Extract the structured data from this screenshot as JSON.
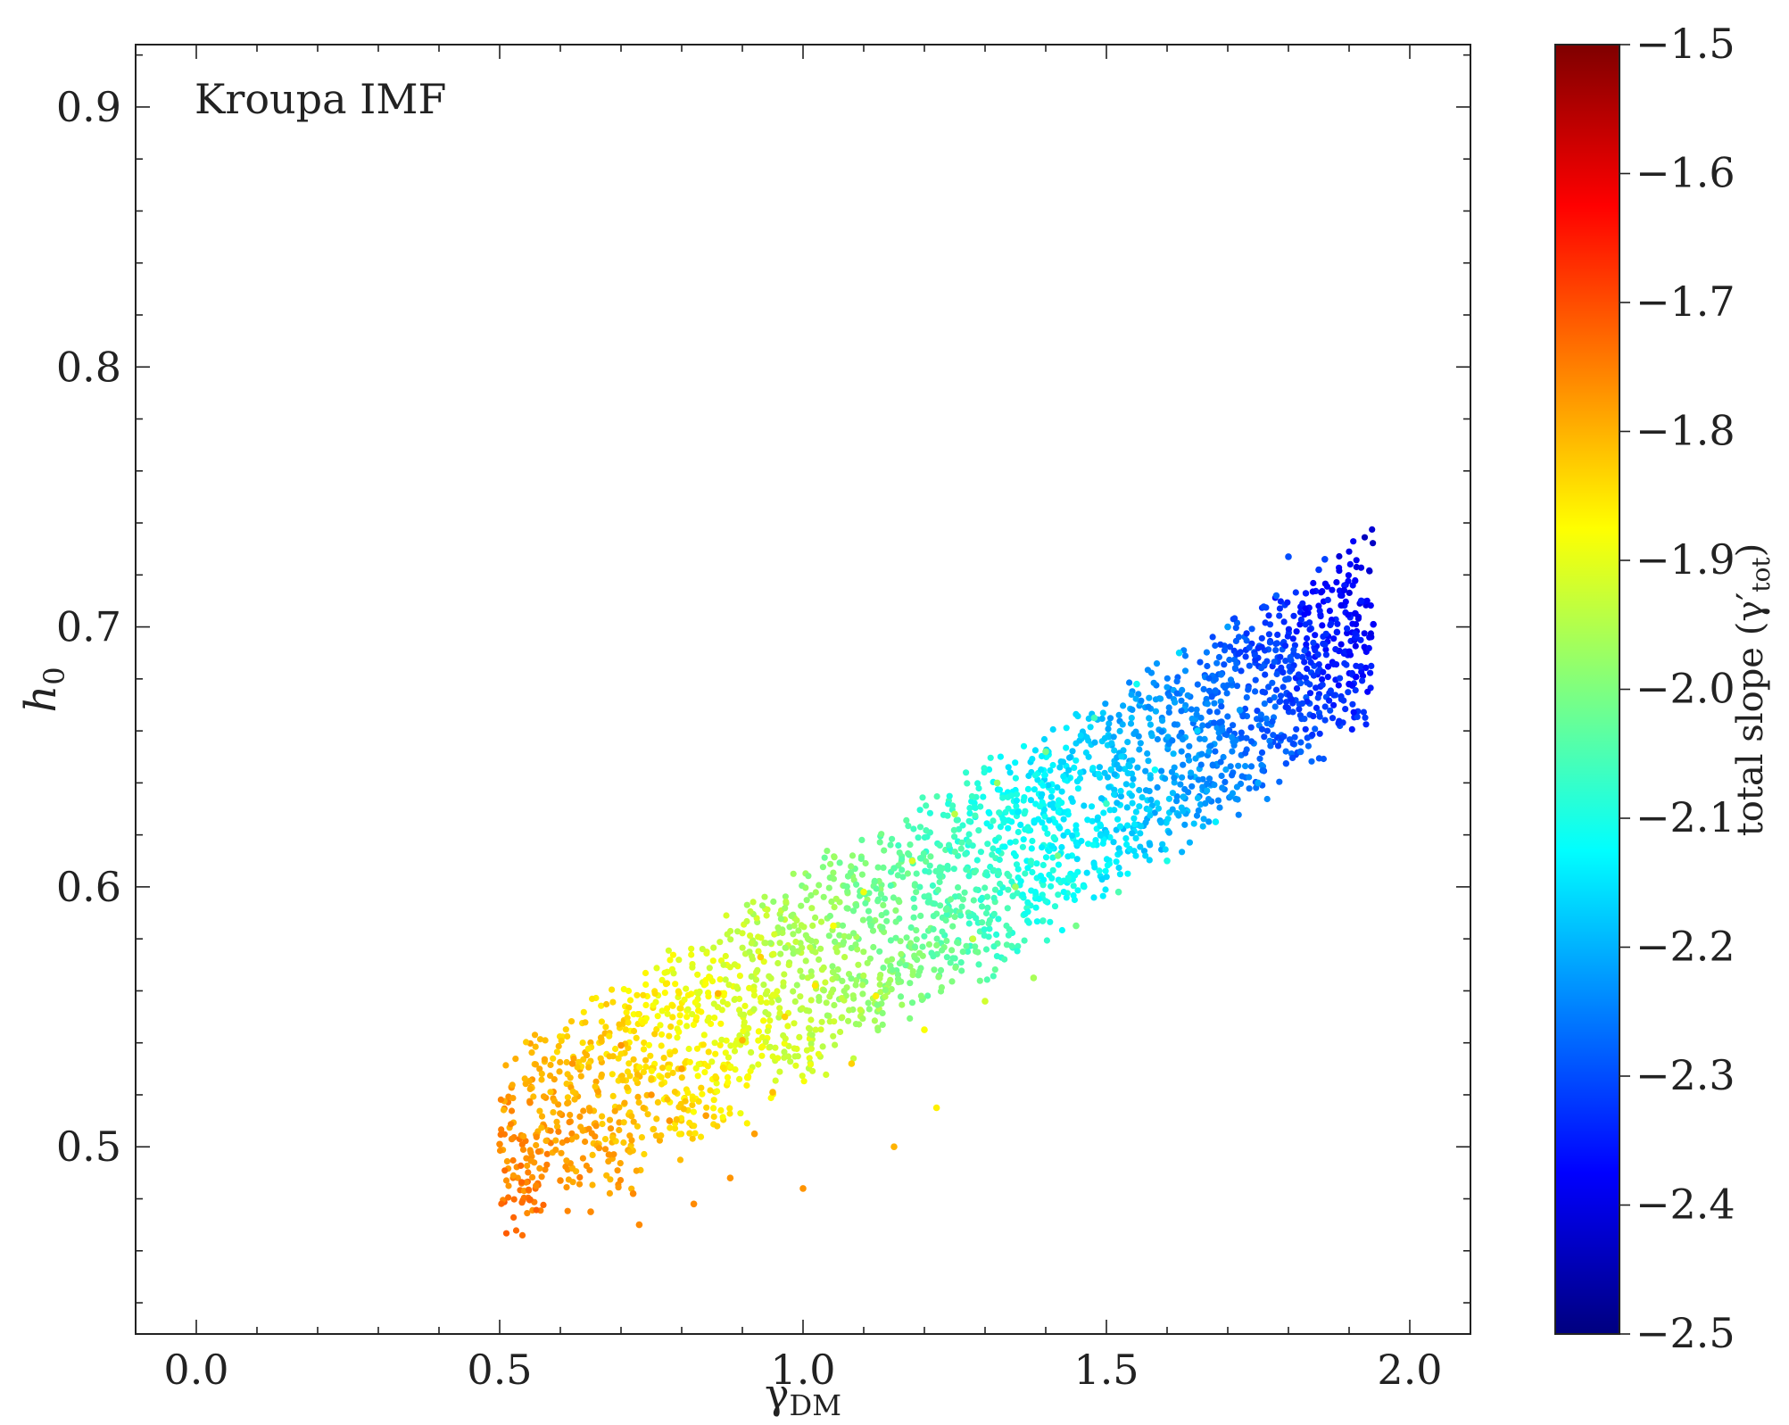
{
  "chart_data": {
    "type": "scatter",
    "annotation": "Kroupa IMF",
    "xlabel": {
      "base": "γ",
      "sub": "DM"
    },
    "ylabel": {
      "base": "h",
      "sub": "0"
    },
    "xlim": [
      -0.1,
      2.1
    ],
    "ylim": [
      0.428,
      0.924
    ],
    "xticks": [
      0.0,
      0.5,
      1.0,
      1.5,
      2.0
    ],
    "xtick_labels": [
      "0.0",
      "0.5",
      "1.0",
      "1.5",
      "2.0"
    ],
    "yticks": [
      0.5,
      0.6,
      0.7,
      0.8,
      0.9
    ],
    "ytick_labels": [
      "0.5",
      "0.6",
      "0.7",
      "0.8",
      "0.9"
    ],
    "colorbar": {
      "label": "total slope (γ′tot)",
      "label_main": "total slope (γ",
      "label_prime": "′",
      "label_sub": "tot",
      "label_close": ")",
      "range": [
        -2.5,
        -1.5
      ],
      "ticks": [
        -1.5,
        -1.6,
        -1.7,
        -1.8,
        -1.9,
        -2.0,
        -2.1,
        -2.2,
        -2.3,
        -2.4,
        -2.5
      ],
      "tick_labels": [
        "−1.5",
        "−1.6",
        "−1.7",
        "−1.8",
        "−1.9",
        "−2.0",
        "−2.1",
        "−2.2",
        "−2.3",
        "−2.4",
        "−2.5"
      ],
      "colormap": "jet",
      "colors": [
        "#00007f",
        "#0000ff",
        "#007fff",
        "#00ffff",
        "#7fff7f",
        "#ffff00",
        "#ff7f00",
        "#ff0000",
        "#7f0000"
      ]
    },
    "points": [
      {
        "x": 0.5,
        "y": 0.501,
        "c": -1.76
      },
      {
        "x": 0.52,
        "y": 0.503,
        "c": -1.76
      },
      {
        "x": 0.55,
        "y": 0.517,
        "c": -1.76
      },
      {
        "x": 0.56,
        "y": 0.485,
        "c": -1.76
      },
      {
        "x": 0.6,
        "y": 0.487,
        "c": -1.76
      },
      {
        "x": 0.62,
        "y": 0.532,
        "c": -1.77
      },
      {
        "x": 0.65,
        "y": 0.475,
        "c": -1.76
      },
      {
        "x": 0.68,
        "y": 0.497,
        "c": -1.77
      },
      {
        "x": 0.7,
        "y": 0.539,
        "c": -1.77
      },
      {
        "x": 0.72,
        "y": 0.482,
        "c": -1.76
      },
      {
        "x": 0.73,
        "y": 0.47,
        "c": -1.76
      },
      {
        "x": 0.75,
        "y": 0.52,
        "c": -1.77
      },
      {
        "x": 0.78,
        "y": 0.51,
        "c": -1.77
      },
      {
        "x": 0.8,
        "y": 0.53,
        "c": -1.78
      },
      {
        "x": 0.82,
        "y": 0.478,
        "c": -1.76
      },
      {
        "x": 0.84,
        "y": 0.512,
        "c": -1.78
      },
      {
        "x": 0.86,
        "y": 0.559,
        "c": -1.8
      },
      {
        "x": 0.88,
        "y": 0.488,
        "c": -1.77
      },
      {
        "x": 0.9,
        "y": 0.541,
        "c": -1.8
      },
      {
        "x": 0.92,
        "y": 0.505,
        "c": -1.78
      },
      {
        "x": 0.93,
        "y": 0.573,
        "c": -1.83
      },
      {
        "x": 0.95,
        "y": 0.521,
        "c": -1.81
      },
      {
        "x": 0.97,
        "y": 0.55,
        "c": -1.83
      },
      {
        "x": 1.0,
        "y": 0.484,
        "c": -1.77
      },
      {
        "x": 1.02,
        "y": 0.562,
        "c": -1.85
      },
      {
        "x": 1.05,
        "y": 0.585,
        "c": -1.88
      },
      {
        "x": 1.08,
        "y": 0.532,
        "c": -1.83
      },
      {
        "x": 1.1,
        "y": 0.598,
        "c": -1.89
      },
      {
        "x": 1.12,
        "y": 0.558,
        "c": -1.86
      },
      {
        "x": 1.15,
        "y": 0.5,
        "c": -1.8
      },
      {
        "x": 1.18,
        "y": 0.61,
        "c": -1.91
      },
      {
        "x": 1.2,
        "y": 0.545,
        "c": -1.88
      },
      {
        "x": 1.22,
        "y": 0.515,
        "c": -1.86
      },
      {
        "x": 1.25,
        "y": 0.628,
        "c": -1.94
      },
      {
        "x": 1.28,
        "y": 0.58,
        "c": -1.93
      },
      {
        "x": 1.3,
        "y": 0.556,
        "c": -1.92
      },
      {
        "x": 1.32,
        "y": 0.64,
        "c": -1.97
      },
      {
        "x": 1.35,
        "y": 0.6,
        "c": -1.97
      },
      {
        "x": 1.38,
        "y": 0.565,
        "c": -1.96
      },
      {
        "x": 1.4,
        "y": 0.652,
        "c": -2.01
      },
      {
        "x": 1.42,
        "y": 0.612,
        "c": -2.01
      },
      {
        "x": 1.45,
        "y": 0.585,
        "c": -2.01
      },
      {
        "x": 1.48,
        "y": 0.665,
        "c": -2.06
      },
      {
        "x": 1.5,
        "y": 0.632,
        "c": -2.07
      },
      {
        "x": 1.52,
        "y": 0.598,
        "c": -2.05
      },
      {
        "x": 1.55,
        "y": 0.678,
        "c": -2.11
      },
      {
        "x": 1.58,
        "y": 0.645,
        "c": -2.12
      },
      {
        "x": 1.6,
        "y": 0.61,
        "c": -2.1
      },
      {
        "x": 1.62,
        "y": 0.69,
        "c": -2.16
      },
      {
        "x": 1.65,
        "y": 0.66,
        "c": -2.17
      },
      {
        "x": 1.68,
        "y": 0.625,
        "c": -2.14
      },
      {
        "x": 1.7,
        "y": 0.7,
        "c": -2.22
      },
      {
        "x": 1.72,
        "y": 0.668,
        "c": -2.22
      },
      {
        "x": 1.75,
        "y": 0.64,
        "c": -2.21
      },
      {
        "x": 1.78,
        "y": 0.712,
        "c": -2.28
      },
      {
        "x": 1.8,
        "y": 0.68,
        "c": -2.29
      },
      {
        "x": 1.82,
        "y": 0.652,
        "c": -2.27
      },
      {
        "x": 1.85,
        "y": 0.722,
        "c": -2.32
      },
      {
        "x": 1.88,
        "y": 0.698,
        "c": -2.35
      },
      {
        "x": 1.9,
        "y": 0.678,
        "c": -2.37
      },
      {
        "x": 1.92,
        "y": 0.71,
        "c": -2.35
      },
      {
        "x": 1.94,
        "y": 0.701,
        "c": -2.38
      },
      {
        "x": 1.8,
        "y": 0.727,
        "c": -2.3
      },
      {
        "x": 1.86,
        "y": 0.726,
        "c": -2.31
      }
    ],
    "cloud": {
      "count": 2600,
      "x_range": [
        0.5,
        1.94
      ],
      "y_bottom_at_xmin": 0.47,
      "y_bottom_at_xmax": 0.67,
      "y_top_at_xmin": 0.53,
      "y_top_at_xmax": 0.73
    }
  }
}
